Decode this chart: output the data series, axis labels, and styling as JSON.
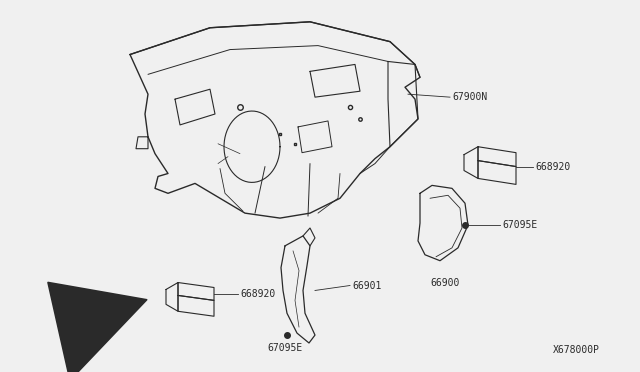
{
  "bg_color": "#f0f0f0",
  "line_color": "#2a2a2a",
  "part_numbers": {
    "main_panel": "67900N",
    "clip_top_right": "668920",
    "bracket_right": "67095E",
    "trim_right": "66900",
    "clip_bottom": "668920",
    "trim_bottom": "66901",
    "clip_bottom_left": "67095E",
    "catalog": "X678000P"
  }
}
